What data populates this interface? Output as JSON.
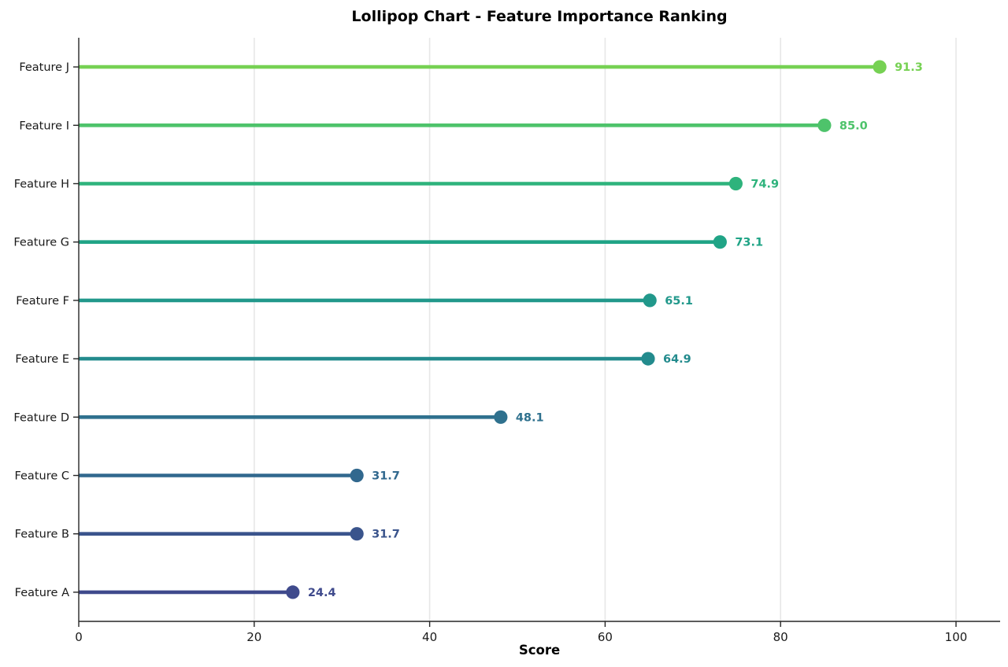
{
  "chart_data": {
    "type": "lollipop",
    "orientation": "horizontal",
    "title": "Lollipop Chart - Feature Importance Ranking",
    "xlabel": "Score",
    "ylabel": "",
    "xlim": [
      0,
      105
    ],
    "xticks": [
      0,
      20,
      40,
      60,
      80,
      100
    ],
    "grid": {
      "vertical": true,
      "horizontal": false,
      "color": "#e7e7e7"
    },
    "legend": "none",
    "axis_color": "#262626",
    "tick_text_color": "#1a1a1a",
    "background": "#ffffff",
    "rows_top_to_bottom": [
      {
        "label": "Feature J",
        "value": 91.3,
        "value_label": "91.3",
        "color": "#76d153"
      },
      {
        "label": "Feature I",
        "value": 85.0,
        "value_label": "85.0",
        "color": "#4ec36b"
      },
      {
        "label": "Feature H",
        "value": 74.9,
        "value_label": "74.9",
        "color": "#2eb37c"
      },
      {
        "label": "Feature G",
        "value": 73.1,
        "value_label": "73.1",
        "color": "#20a486"
      },
      {
        "label": "Feature F",
        "value": 65.1,
        "value_label": "65.1",
        "color": "#21988b"
      },
      {
        "label": "Feature E",
        "value": 64.9,
        "value_label": "64.9",
        "color": "#238b8d"
      },
      {
        "label": "Feature D",
        "value": 48.1,
        "value_label": "48.1",
        "color": "#2f718e"
      },
      {
        "label": "Feature C",
        "value": 31.7,
        "value_label": "31.7",
        "color": "#31688e"
      },
      {
        "label": "Feature B",
        "value": 31.7,
        "value_label": "31.7",
        "color": "#3a548c"
      },
      {
        "label": "Feature A",
        "value": 24.4,
        "value_label": "24.4",
        "color": "#3f4a8c"
      }
    ]
  }
}
